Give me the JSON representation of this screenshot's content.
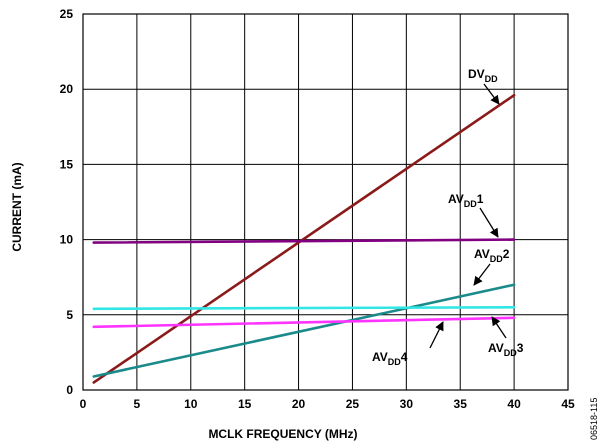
{
  "chart_data": {
    "type": "line",
    "xlabel": "MCLK FREQUENCY (MHz)",
    "ylabel": "CURRENT (mA)",
    "xlim": [
      0,
      45
    ],
    "ylim": [
      0,
      25
    ],
    "x_ticks": [
      "0",
      "5",
      "10",
      "15",
      "20",
      "25",
      "30",
      "35",
      "40",
      "45"
    ],
    "y_ticks": [
      "0",
      "5",
      "10",
      "15",
      "20",
      "25"
    ],
    "grid": true,
    "series": [
      {
        "name": "DV",
        "sub": "DD",
        "suffix": "",
        "color": "#8b1a1a",
        "x": [
          1,
          40
        ],
        "y": [
          0.5,
          19.6
        ]
      },
      {
        "name": "AV",
        "sub": "DD",
        "suffix": "1",
        "color": "#800080",
        "x": [
          1,
          40
        ],
        "y": [
          9.8,
          10.0
        ]
      },
      {
        "name": "AV",
        "sub": "DD",
        "suffix": "2",
        "color": "#1a8a8a",
        "x": [
          1,
          40
        ],
        "y": [
          0.9,
          7.0
        ]
      },
      {
        "name": "AV",
        "sub": "DD",
        "suffix": "3",
        "color": "#ff33ff",
        "x": [
          1,
          40
        ],
        "y": [
          4.2,
          4.8
        ]
      },
      {
        "name": "AV",
        "sub": "DD",
        "suffix": "4",
        "color": "#33e6e6",
        "x": [
          1,
          40
        ],
        "y": [
          5.4,
          5.5
        ]
      }
    ],
    "watermark": "06518-115"
  }
}
